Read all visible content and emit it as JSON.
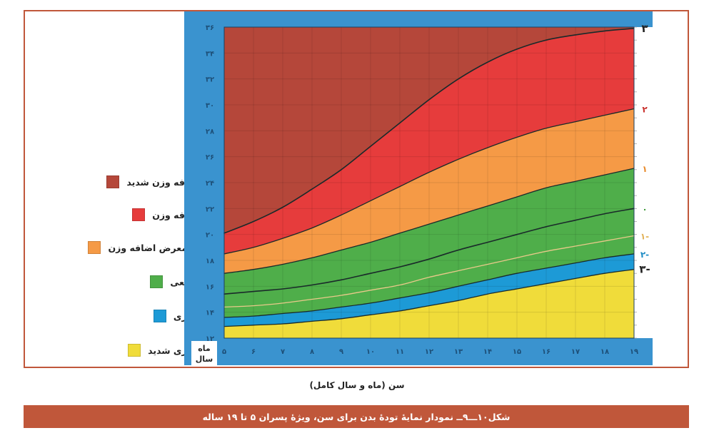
{
  "caption": "شکل۱۰ـــ۹ــ نمودار  نمایهٔ تودهٔ بدن برای سن، ویژهٔ پسران ۵ تا ۱۹ ساله",
  "colors": {
    "frame": "#c0573a",
    "background": "#3a93cf",
    "gridline": "#6fb3df",
    "severe_overweight": "#b5473a",
    "overweight": "#e63c3c",
    "at_risk": "#f59a46",
    "normal": "#4fae4a",
    "thin": "#1d9ad6",
    "severe_thin": "#f0dc3a"
  },
  "legend": [
    {
      "label": "اضافه وزن شدید",
      "color": "#b5473a"
    },
    {
      "label": "اضافه وزن",
      "color": "#e63c3c"
    },
    {
      "label": "در معرض اضافه وزن",
      "color": "#f59a46"
    },
    {
      "label": "طبیعی",
      "color": "#4fae4a"
    },
    {
      "label": "لاغری",
      "color": "#1d9ad6"
    },
    {
      "label": "لاغری شدید",
      "color": "#f0dc3a"
    }
  ],
  "chart_data": {
    "type": "area",
    "xlabel": "سن (ماه و سال کامل)",
    "x_axis_corner_label": [
      "ماه",
      "سال"
    ],
    "x_tick_labels": [
      "۵",
      "۶",
      "۷",
      "۸",
      "۹",
      "۱۰",
      "۱۱",
      "۱۲",
      "۱۳",
      "۱۴",
      "۱۵",
      "۱۶",
      "۱۷",
      "۱۸",
      "۱۹"
    ],
    "y_tick_labels": [
      "۱۲",
      "۱۴",
      "۱۶",
      "۱۸",
      "۲۰",
      "۲۲",
      "۲۴",
      "۲۶",
      "۲۸",
      "۳۰",
      "۳۲",
      "۳۴",
      "۳۶"
    ],
    "z_labels": [
      {
        "label": "۳",
        "z": 3
      },
      {
        "label": "۲",
        "z": 2
      },
      {
        "label": "۱",
        "z": 1
      },
      {
        "label": "۰",
        "z": 0
      },
      {
        "label": "۱-",
        "z": -1
      },
      {
        "label": "۲-",
        "z": -2
      },
      {
        "label": "۳-",
        "z": -3
      }
    ],
    "xlim": [
      5,
      19
    ],
    "ylim": [
      12,
      36
    ],
    "grid": true,
    "x": [
      5,
      6,
      7,
      8,
      9,
      10,
      11,
      12,
      13,
      14,
      15,
      16,
      17,
      18,
      19
    ],
    "series": [
      {
        "z": 3,
        "values": [
          20.1,
          21.0,
          22.1,
          23.5,
          25.0,
          26.8,
          28.6,
          30.4,
          32.0,
          33.3,
          34.3,
          35.0,
          35.4,
          35.7,
          35.9
        ]
      },
      {
        "z": 2,
        "values": [
          18.5,
          19.0,
          19.7,
          20.5,
          21.5,
          22.6,
          23.7,
          24.8,
          25.8,
          26.7,
          27.5,
          28.2,
          28.7,
          29.2,
          29.7
        ]
      },
      {
        "z": 1,
        "values": [
          17.0,
          17.3,
          17.7,
          18.2,
          18.8,
          19.4,
          20.1,
          20.8,
          21.5,
          22.2,
          22.9,
          23.6,
          24.1,
          24.6,
          25.1
        ]
      },
      {
        "z": 0,
        "values": [
          15.4,
          15.6,
          15.8,
          16.1,
          16.5,
          17.0,
          17.5,
          18.1,
          18.8,
          19.4,
          20.0,
          20.6,
          21.1,
          21.6,
          22.0
        ]
      },
      {
        "z": -1,
        "values": [
          14.4,
          14.5,
          14.7,
          15.0,
          15.3,
          15.7,
          16.1,
          16.7,
          17.2,
          17.7,
          18.2,
          18.7,
          19.1,
          19.5,
          19.9
        ]
      },
      {
        "z": -2,
        "values": [
          13.6,
          13.7,
          13.9,
          14.1,
          14.4,
          14.7,
          15.1,
          15.5,
          16.0,
          16.5,
          17.0,
          17.4,
          17.8,
          18.2,
          18.5
        ]
      },
      {
        "z": -3,
        "values": [
          12.9,
          13.0,
          13.1,
          13.3,
          13.5,
          13.8,
          14.1,
          14.5,
          14.9,
          15.4,
          15.8,
          16.2,
          16.6,
          17.0,
          17.3
        ]
      }
    ]
  }
}
